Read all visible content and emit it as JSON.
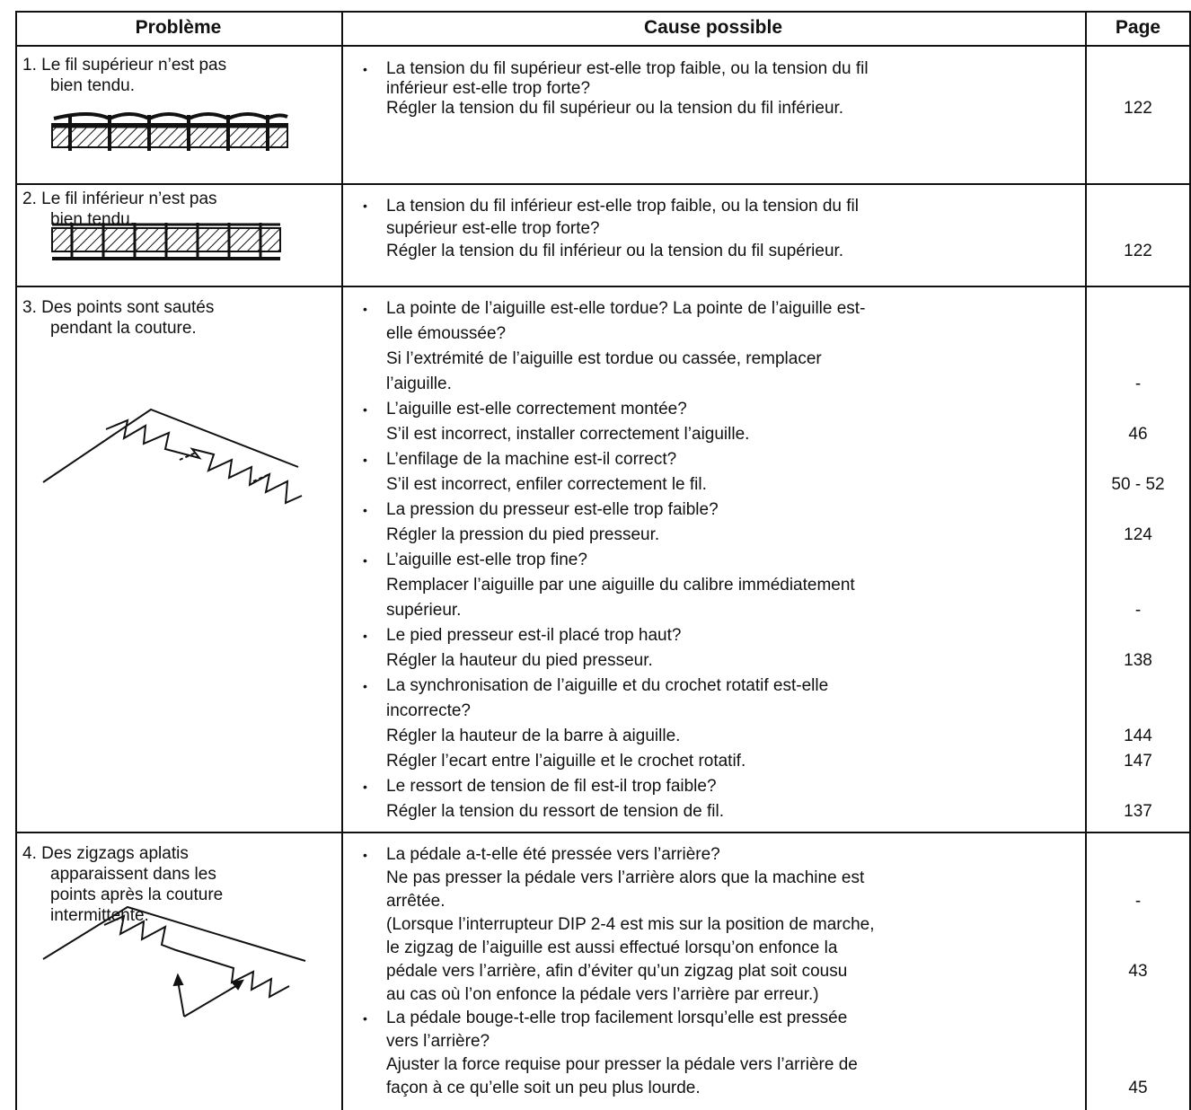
{
  "table": {
    "header": [
      "Problème",
      "Cause possible",
      "Page"
    ],
    "rows": [
      {
        "problem": [
          "1.  Le fil supérieur n’est pas",
          "bien tendu."
        ],
        "causes": [
          {
            "lines": [
              "La tension du fil supérieur est-elle trop faible, ou la tension du fil",
              "inférieur est-elle trop forte?",
              "Régler la tension du fil supérieur ou la tension du fil inférieur."
            ],
            "pages": [
              null,
              null,
              "122"
            ]
          }
        ]
      },
      {
        "problem": [
          "2.  Le fil inférieur n’est pas",
          "bien tendu."
        ],
        "causes": [
          {
            "lines": [
              "La tension du fil inférieur est-elle trop faible, ou la tension du fil",
              "supérieur est-elle trop forte?",
              "Régler la tension du fil inférieur ou la tension du fil supérieur."
            ],
            "pages": [
              null,
              null,
              "122"
            ]
          }
        ]
      },
      {
        "problem": [
          "3.  Des points sont sautés",
          "pendant la couture."
        ],
        "causes": [
          {
            "lines": [
              "La pointe de l’aiguille est-elle tordue? La pointe de l’aiguille est-",
              "elle émoussée?",
              "Si l’extrémité de l’aiguille est tordue ou cassée, remplacer",
              "l’aiguille."
            ],
            "pages": [
              null,
              null,
              null,
              "-"
            ]
          },
          {
            "lines": [
              "L’aiguille est-elle correctement montée?",
              "S’il est incorrect, installer correctement l’aiguille."
            ],
            "pages": [
              null,
              "46"
            ]
          },
          {
            "lines": [
              "L’enfilage de la machine est-il correct?",
              "S’il est incorrect, enfiler correctement le fil."
            ],
            "pages": [
              null,
              "50 - 52"
            ]
          },
          {
            "lines": [
              "La pression du presseur est-elle trop faible?",
              "Régler la pression du pied presseur."
            ],
            "pages": [
              null,
              "124"
            ]
          },
          {
            "lines": [
              "L’aiguille est-elle trop fine?",
              "Remplacer l’aiguille par une aiguille du calibre immédiatement",
              "supérieur."
            ],
            "pages": [
              null,
              null,
              "-"
            ]
          },
          {
            "lines": [
              "Le pied presseur est-il placé trop haut?",
              "Régler la hauteur du pied presseur."
            ],
            "pages": [
              null,
              "138"
            ]
          },
          {
            "lines": [
              "La synchronisation de l’aiguille et du crochet rotatif est-elle",
              "incorrecte?",
              "Régler la hauteur de la barre à aiguille.",
              "Régler l’ecart entre l’aiguille et le crochet rotatif."
            ],
            "pages": [
              null,
              null,
              "144",
              "147"
            ]
          },
          {
            "lines": [
              "Le ressort de tension de fil est-il trop faible?",
              "Régler la tension du ressort de tension de fil."
            ],
            "pages": [
              null,
              "137"
            ]
          }
        ]
      },
      {
        "problem": [
          "4.  Des zigzags aplatis",
          "apparaissent dans les",
          "points après la couture",
          "intermittente."
        ],
        "causes": [
          {
            "lines": [
              "La pédale a-t-elle été pressée vers l’arrière?",
              "Ne pas presser la pédale vers l’arrière alors que la machine est",
              "arrêtée.",
              "(Lorsque l’interrupteur DIP 2-4 est mis sur la position de marche,",
              "le zigzag de l’aiguille est aussi effectué lorsqu’on enfonce la",
              "pédale vers l’arrière, afin d’éviter qu’un zigzag plat soit cousu",
              "au cas où l’on enfonce la pédale vers l’arrière par erreur.)"
            ],
            "pages": [
              null,
              null,
              "-",
              null,
              null,
              "43",
              null
            ]
          },
          {
            "lines": [
              "La pédale bouge-t-elle trop facilement lorsqu’elle est pressée",
              "vers l’arrière?",
              "Ajuster la force requise pour presser la pédale vers l’arrière de",
              "façon à ce qu’elle soit un peu plus lourde."
            ],
            "pages": [
              null,
              null,
              null,
              "45"
            ]
          }
        ]
      }
    ]
  }
}
